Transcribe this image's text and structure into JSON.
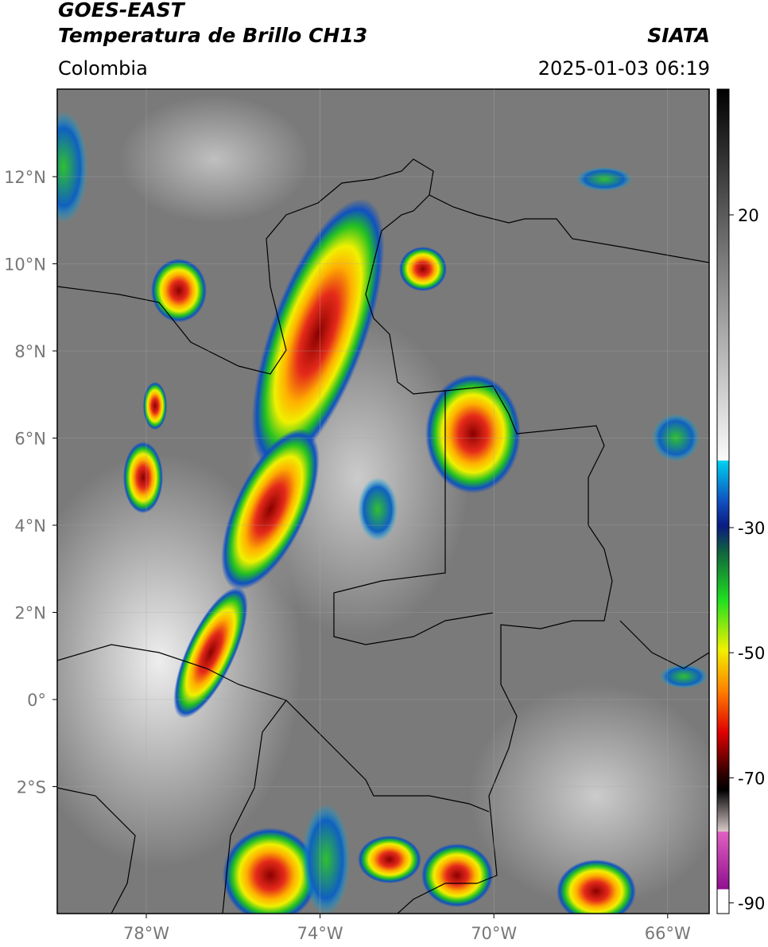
{
  "header": {
    "title": "GOES-EAST",
    "subtitle": "Temperatura de Brillo CH13",
    "region": "Colombia",
    "source": "SIATA",
    "datetime": "2025-01-03 06:19"
  },
  "map": {
    "lat_labels": [
      "12°N",
      "10°N",
      "8°N",
      "6°N",
      "4°N",
      "2°N",
      "0°",
      "2°S"
    ],
    "lon_labels": [
      "78°W",
      "74°W",
      "70°W",
      "66°W"
    ]
  },
  "colorbar": {
    "ticks": [
      20,
      -30,
      -50,
      -70,
      -90
    ]
  }
}
